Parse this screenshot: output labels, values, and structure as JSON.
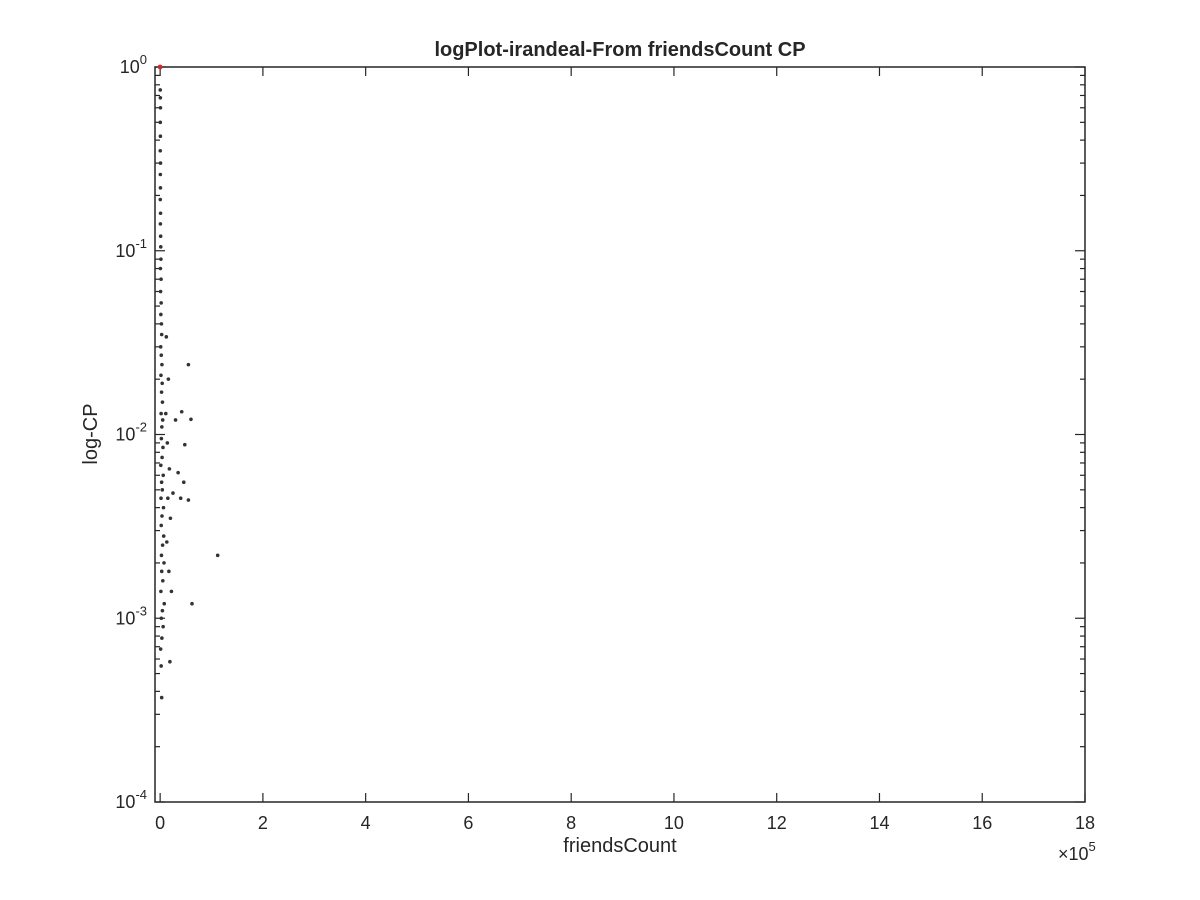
{
  "chart_data": {
    "type": "scatter",
    "title": "logPlot-irandeal-From friendsCount CP",
    "xlabel": "friendsCount",
    "ylabel": "log-CP",
    "x_multiplier_base": "×10",
    "x_multiplier_exp": "5",
    "xlim": [
      -0.1,
      18
    ],
    "ylim": [
      0.0001,
      1
    ],
    "y_scale": "log",
    "grid": false,
    "x_ticks": [
      0,
      2,
      4,
      6,
      8,
      10,
      12,
      14,
      16,
      18
    ],
    "x_tick_labels": [
      "0",
      "2",
      "4",
      "6",
      "8",
      "10",
      "12",
      "14",
      "16",
      "18"
    ],
    "y_ticks": [
      {
        "value": 1,
        "base": "10",
        "exp": "0"
      },
      {
        "value": 0.1,
        "base": "10",
        "exp": "-1"
      },
      {
        "value": 0.01,
        "base": "10",
        "exp": "-2"
      },
      {
        "value": 0.001,
        "base": "10",
        "exp": "-3"
      },
      {
        "value": 0.0001,
        "base": "10",
        "exp": "-4"
      }
    ],
    "colors": {
      "points": "#333333",
      "highlight": "#d62728",
      "axes": "#262626"
    },
    "highlight_point": {
      "x": 0.0,
      "y": 1.0
    },
    "series": [
      {
        "points": [
          [
            0.002,
            0.75
          ],
          [
            0.004,
            0.68
          ],
          [
            0.006,
            0.6
          ],
          [
            0.003,
            0.5
          ],
          [
            0.005,
            0.42
          ],
          [
            0.002,
            0.35
          ],
          [
            0.007,
            0.3
          ],
          [
            0.004,
            0.26
          ],
          [
            0.006,
            0.22
          ],
          [
            0.003,
            0.19
          ],
          [
            0.008,
            0.16
          ],
          [
            0.005,
            0.14
          ],
          [
            0.01,
            0.12
          ],
          [
            0.012,
            0.105
          ],
          [
            0.015,
            0.09
          ],
          [
            0.006,
            0.08
          ],
          [
            0.018,
            0.07
          ],
          [
            0.009,
            0.06
          ],
          [
            0.02,
            0.052
          ],
          [
            0.014,
            0.045
          ],
          [
            0.025,
            0.04
          ],
          [
            0.03,
            0.035
          ],
          [
            0.011,
            0.03
          ],
          [
            0.022,
            0.027
          ],
          [
            0.035,
            0.024
          ],
          [
            0.016,
            0.021
          ],
          [
            0.04,
            0.019
          ],
          [
            0.028,
            0.017
          ],
          [
            0.045,
            0.015
          ],
          [
            0.019,
            0.013
          ],
          [
            0.05,
            0.012
          ],
          [
            0.033,
            0.011
          ],
          [
            0.024,
            0.0095
          ],
          [
            0.055,
            0.0085
          ],
          [
            0.038,
            0.0075
          ],
          [
            0.013,
            0.0068
          ],
          [
            0.06,
            0.006
          ],
          [
            0.029,
            0.0055
          ],
          [
            0.042,
            0.005
          ],
          [
            0.017,
            0.0045
          ],
          [
            0.065,
            0.004
          ],
          [
            0.036,
            0.0036
          ],
          [
            0.021,
            0.0032
          ],
          [
            0.07,
            0.0028
          ],
          [
            0.048,
            0.0025
          ],
          [
            0.026,
            0.0022
          ],
          [
            0.075,
            0.002
          ],
          [
            0.031,
            0.0018
          ],
          [
            0.052,
            0.0016
          ],
          [
            0.015,
            0.0014
          ],
          [
            0.08,
            0.0012
          ],
          [
            0.044,
            0.0011
          ],
          [
            0.023,
            0.001
          ],
          [
            0.058,
            0.0009
          ],
          [
            0.034,
            0.00078
          ],
          [
            0.01,
            0.00068
          ],
          [
            0.02,
            0.00055
          ],
          [
            0.03,
            0.00037
          ],
          [
            0.12,
            0.034
          ],
          [
            0.16,
            0.02
          ],
          [
            0.11,
            0.013
          ],
          [
            0.14,
            0.009
          ],
          [
            0.18,
            0.0065
          ],
          [
            0.15,
            0.0045
          ],
          [
            0.2,
            0.0035
          ],
          [
            0.13,
            0.0026
          ],
          [
            0.17,
            0.0018
          ],
          [
            0.22,
            0.0014
          ],
          [
            0.19,
            0.00058
          ],
          [
            0.25,
            0.0048
          ],
          [
            0.3,
            0.012
          ],
          [
            0.35,
            0.0062
          ],
          [
            0.4,
            0.0045
          ],
          [
            0.42,
            0.0133
          ],
          [
            0.48,
            0.0088
          ],
          [
            0.46,
            0.0055
          ],
          [
            0.55,
            0.024
          ],
          [
            0.6,
            0.0121
          ],
          [
            0.55,
            0.0044
          ],
          [
            0.62,
            0.0012
          ],
          [
            1.12,
            0.0022
          ]
        ]
      }
    ]
  }
}
